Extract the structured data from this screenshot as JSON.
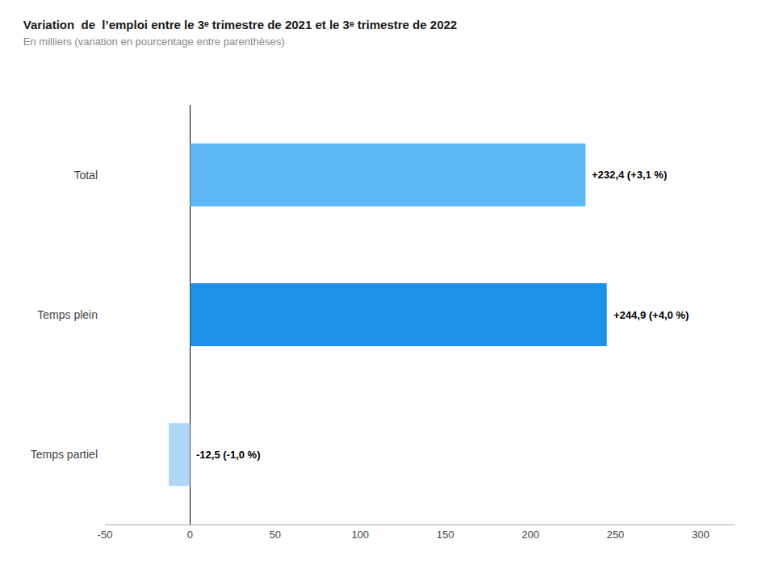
{
  "chart_data": {
    "type": "bar",
    "orientation": "horizontal",
    "title": "Variation  de  l’emploi entre le 3ᵉ trimestre de 2021 et le 3ᵉ trimestre de 2022",
    "subtitle": "En milliers (variation en pourcentage entre parenthèses)",
    "categories": [
      "Total",
      "Temps plein",
      "Temps partiel"
    ],
    "values": [
      232.4,
      244.9,
      -12.5
    ],
    "value_labels": [
      "+232,4 (+3,1 %)",
      "+244,9 (+4,0 %)",
      "-12,5 (-1,0 %)"
    ],
    "data_labels": true,
    "colors": [
      "#5bb8f5",
      "#1e90e8",
      "#add8f7"
    ],
    "xlim": [
      -50,
      320
    ],
    "xticks": [
      -50,
      0,
      50,
      100,
      150,
      200,
      250,
      300
    ],
    "grid": false
  }
}
